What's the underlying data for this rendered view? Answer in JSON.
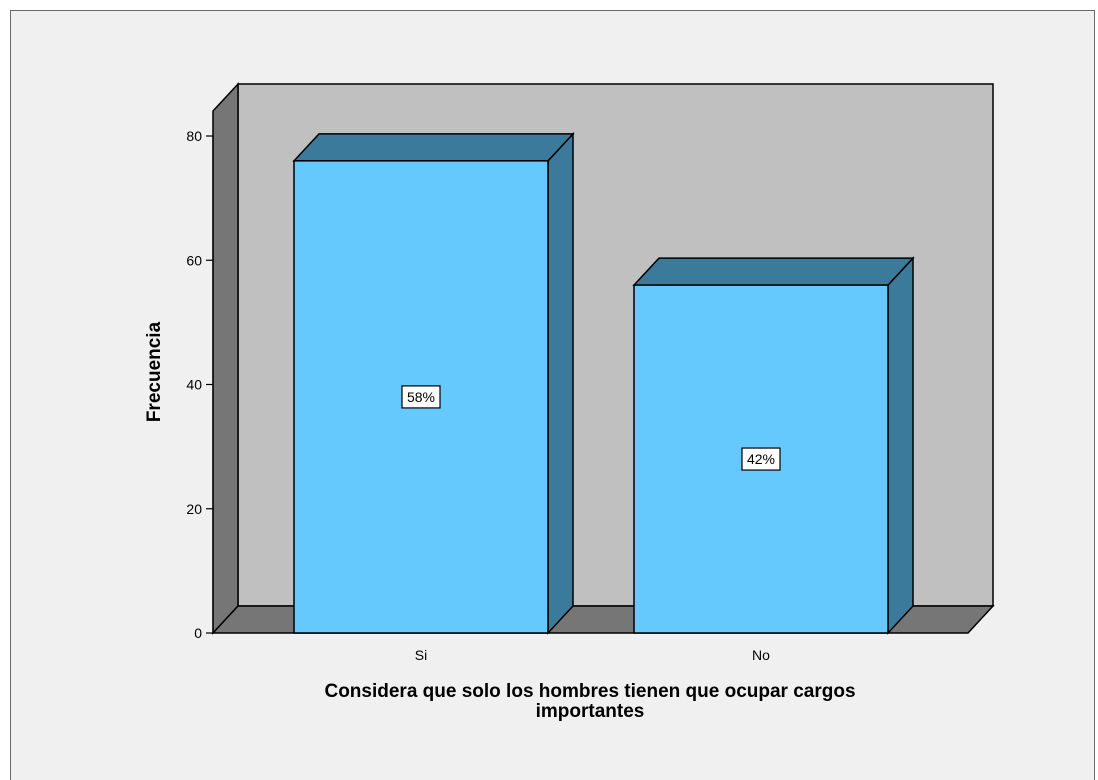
{
  "chart_data": {
    "type": "bar",
    "categories": [
      "Si",
      "No"
    ],
    "values": [
      76,
      56
    ],
    "data_labels": [
      "58%",
      "42%"
    ],
    "title": "",
    "xlabel": "Considera que solo los hombres tienen que ocupar cargos importantes",
    "xlabel_lines": [
      "Considera que solo los hombres tienen que ocupar cargos",
      "importantes"
    ],
    "ylabel": "Frecuencia",
    "ylim": [
      0,
      80
    ],
    "yticks": [
      0,
      20,
      40,
      60,
      80
    ],
    "grid": false,
    "legend": "none",
    "style": "3d",
    "colors": {
      "bar_front": "#66c9fe",
      "bar_side": "#3c7a9b",
      "bar_top": "#3c7a9b",
      "back_wall": "#c0c0c0",
      "side_wall": "#767676",
      "floor": "#767676",
      "frame_background": "#f0f0f0"
    }
  }
}
